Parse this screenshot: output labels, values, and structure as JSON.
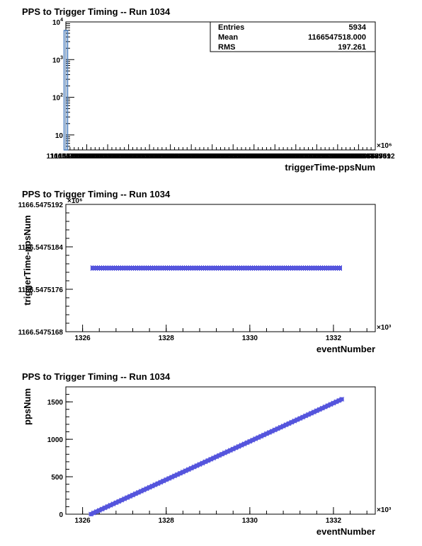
{
  "chart_data": [
    {
      "type": "bar",
      "title": "PPS to Trigger Timing -- Run 1034",
      "xlabel": "triggerTime-ppsNum",
      "ylabel": "",
      "x_multiplier": "×10⁶",
      "x_tick_labels": [
        "1166547518",
        "1166547519",
        "1166547520",
        "1166547521",
        "1166547522",
        "1166547523",
        "1166547524",
        "1166547525",
        "1166547526",
        "1166547527",
        "1166547528",
        "1166547529",
        "1166547530",
        "1166547531",
        "1166547532",
        "1166547533",
        "1166547534",
        "1166547535",
        "1166547536",
        "1166547537",
        "1166547538",
        "1166547539",
        "1166547540",
        "1166547541",
        "1166547542",
        "1166547543",
        "1166547544",
        "1166547545",
        "1166547546",
        "1166547547",
        "1166547548",
        "1166547549",
        "1166547550",
        "1166547551",
        "1166547552",
        "1166547553",
        "1166547554",
        "1166547555",
        "1166547556",
        "1166547557",
        "1166547558",
        "1166547559",
        "1166547560",
        "1166547561",
        "1166547562",
        "1166547563",
        "1166547564",
        "1166547565",
        "1166547566",
        "1166547567",
        "1166547568",
        "1166547569",
        "1166547570",
        "1166547571",
        "1166547572",
        "1166547573",
        "1166547574",
        "1166547575",
        "1166547576",
        "1166547577",
        "1166547578",
        "1166547579",
        "1166547580",
        "1166547581",
        "1166547582",
        "1166547583",
        "1166547584",
        "1166547585",
        "1166547586",
        "1166547587",
        "1166547588",
        "1166547589",
        "1166547590",
        "1166547591",
        "1166547592"
      ],
      "y_scale": "log",
      "ylim": [
        4,
        10000
      ],
      "y_tick_labels": [
        {
          "base": "10",
          "exp": "4",
          "value": 10000
        },
        {
          "base": "10",
          "exp": "3",
          "value": 1000
        },
        {
          "base": "10",
          "exp": "2",
          "value": 100
        },
        {
          "base": "10",
          "exp": "",
          "value": 10
        }
      ],
      "bars": [
        {
          "x": 1166547518,
          "value": 5934
        }
      ],
      "bar_color": "#4a7fc0",
      "stats": [
        {
          "label": "Entries",
          "value": "5934"
        },
        {
          "label": "Mean",
          "value": "1166547518.000"
        },
        {
          "label": "RMS",
          "value": "197.261"
        }
      ]
    },
    {
      "type": "scatter",
      "title": "PPS to Trigger Timing -- Run 1034",
      "xlabel": "eventNumber",
      "ylabel": "triggerTime-ppsNum",
      "x_multiplier": "×10³",
      "y_multiplier": "×10⁶",
      "xlim": [
        1325.6,
        1333.0
      ],
      "x_ticks": [
        1326,
        1328,
        1330,
        1332
      ],
      "x_tick_labels": [
        "1326",
        "1328",
        "1330",
        "1332"
      ],
      "ylim": [
        1166.5475168,
        1166.5475192
      ],
      "y_ticks": [
        1166.5475168,
        1166.5475176,
        1166.5475184,
        1166.5475192
      ],
      "y_tick_labels": [
        "1166.5475168",
        "1166.5475176",
        "1166.5475184",
        "1166.5475192"
      ],
      "series": [
        {
          "x_range": [
            1326.2,
            1332.2
          ],
          "y_constant": 1166.547518
        }
      ],
      "marker_color": "#5555dd"
    },
    {
      "type": "scatter",
      "title": "PPS to Trigger Timing -- Run 1034",
      "xlabel": "eventNumber",
      "ylabel": "ppsNum",
      "x_multiplier": "×10³",
      "xlim": [
        1325.6,
        1333.0
      ],
      "x_ticks": [
        1326,
        1328,
        1330,
        1332
      ],
      "x_tick_labels": [
        "1326",
        "1328",
        "1330",
        "1332"
      ],
      "ylim": [
        0,
        1700
      ],
      "y_ticks": [
        0,
        500,
        1000,
        1500
      ],
      "y_tick_labels": [
        "0",
        "500",
        "1000",
        "1500"
      ],
      "series": [
        {
          "x": [
            1326.2,
            1332.2
          ],
          "y": [
            0,
            1535
          ]
        }
      ],
      "marker_color": "#5555dd"
    }
  ]
}
